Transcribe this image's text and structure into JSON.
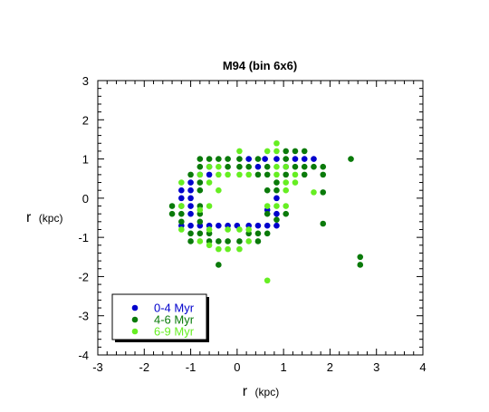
{
  "chart_data": {
    "type": "scatter",
    "title": "M94 (bin 6x6)",
    "xlabel": "r",
    "xlabel_unit": "(kpc)",
    "ylabel": "r",
    "ylabel_unit": "(kpc)",
    "xlim": [
      -3,
      4
    ],
    "ylim": [
      -4,
      3
    ],
    "xticks": [
      -3,
      -2,
      -1,
      0,
      1,
      2,
      3,
      4
    ],
    "yticks": [
      -4,
      -3,
      -2,
      -1,
      0,
      1,
      2,
      3
    ],
    "grid": false,
    "legend_position": "bottom-left",
    "series": [
      {
        "name": "0-4 Myr",
        "color": "#0000cc",
        "points": [
          [
            0.25,
            1.0
          ],
          [
            0.6,
            1.0
          ],
          [
            0.85,
            1.0
          ],
          [
            1.25,
            1.0
          ],
          [
            1.45,
            1.0
          ],
          [
            1.65,
            1.0
          ],
          [
            -0.6,
            0.8
          ],
          [
            0.45,
            0.8
          ],
          [
            1.05,
            0.8
          ],
          [
            -0.8,
            0.6
          ],
          [
            -0.6,
            0.6
          ],
          [
            -1.0,
            0.4
          ],
          [
            -1.2,
            0.2
          ],
          [
            -1.0,
            0.2
          ],
          [
            -1.2,
            0.0
          ],
          [
            -1.0,
            0.0
          ],
          [
            0.85,
            0.0
          ],
          [
            -1.0,
            -0.2
          ],
          [
            0.65,
            -0.3
          ],
          [
            -1.0,
            -0.4
          ],
          [
            0.85,
            -0.4
          ],
          [
            -1.2,
            -0.7
          ],
          [
            -1.0,
            -0.7
          ],
          [
            -0.8,
            -0.7
          ],
          [
            -0.6,
            -0.7
          ],
          [
            -0.4,
            -0.7
          ],
          [
            -0.2,
            -0.7
          ],
          [
            0.0,
            -0.7
          ],
          [
            0.25,
            -0.7
          ],
          [
            0.45,
            -0.7
          ],
          [
            0.65,
            -0.7
          ],
          [
            0.85,
            -0.7
          ]
        ]
      },
      {
        "name": "4-6 Myr",
        "color": "#0a7a0a",
        "points": [
          [
            1.05,
            1.2
          ],
          [
            1.25,
            1.2
          ],
          [
            1.45,
            1.2
          ],
          [
            -0.8,
            1.0
          ],
          [
            -0.6,
            1.0
          ],
          [
            -0.4,
            1.0
          ],
          [
            -0.2,
            1.0
          ],
          [
            0.05,
            1.0
          ],
          [
            0.45,
            1.0
          ],
          [
            1.05,
            1.0
          ],
          [
            2.45,
            1.0
          ],
          [
            -0.8,
            0.8
          ],
          [
            -0.2,
            0.8
          ],
          [
            0.05,
            0.8
          ],
          [
            0.25,
            0.8
          ],
          [
            0.65,
            0.8
          ],
          [
            1.25,
            0.8
          ],
          [
            1.45,
            0.8
          ],
          [
            1.65,
            0.8
          ],
          [
            1.85,
            0.8
          ],
          [
            -1.0,
            0.6
          ],
          [
            0.45,
            0.6
          ],
          [
            0.65,
            0.6
          ],
          [
            1.05,
            0.6
          ],
          [
            1.45,
            0.6
          ],
          [
            1.85,
            0.6
          ],
          [
            -0.8,
            0.4
          ],
          [
            0.85,
            0.4
          ],
          [
            -0.8,
            0.2
          ],
          [
            0.65,
            0.2
          ],
          [
            0.85,
            0.2
          ],
          [
            1.85,
            0.15
          ],
          [
            -1.4,
            -0.2
          ],
          [
            -1.2,
            -0.2
          ],
          [
            -0.8,
            -0.2
          ],
          [
            -1.4,
            -0.4
          ],
          [
            -1.2,
            -0.4
          ],
          [
            -0.8,
            -0.4
          ],
          [
            0.65,
            -0.4
          ],
          [
            1.05,
            -0.4
          ],
          [
            -1.2,
            -0.6
          ],
          [
            -0.8,
            -0.6
          ],
          [
            0.85,
            -0.55
          ],
          [
            -1.0,
            -0.9
          ],
          [
            -0.8,
            -0.9
          ],
          [
            -0.6,
            -0.9
          ],
          [
            0.25,
            -0.9
          ],
          [
            0.45,
            -0.9
          ],
          [
            0.65,
            -0.9
          ],
          [
            -1.0,
            -1.1
          ],
          [
            -0.6,
            -1.1
          ],
          [
            -0.4,
            -1.1
          ],
          [
            -0.2,
            -1.1
          ],
          [
            0.05,
            -1.1
          ],
          [
            0.45,
            -1.1
          ],
          [
            1.85,
            -0.65
          ],
          [
            2.65,
            -1.5
          ],
          [
            2.65,
            -1.7
          ],
          [
            -0.4,
            -1.7
          ]
        ]
      },
      {
        "name": "6-9 Myr",
        "color": "#66ee22",
        "points": [
          [
            0.85,
            1.4
          ],
          [
            0.05,
            1.2
          ],
          [
            0.65,
            1.2
          ],
          [
            0.85,
            1.2
          ],
          [
            -0.6,
            0.8
          ],
          [
            -0.4,
            0.8
          ],
          [
            0.85,
            0.8
          ],
          [
            1.05,
            0.8
          ],
          [
            -1.2,
            0.4
          ],
          [
            -0.6,
            0.4
          ],
          [
            1.05,
            0.4
          ],
          [
            1.25,
            0.4
          ],
          [
            -0.8,
            0.6
          ],
          [
            -0.4,
            0.6
          ],
          [
            -0.2,
            0.6
          ],
          [
            0.05,
            0.6
          ],
          [
            0.25,
            0.6
          ],
          [
            0.85,
            0.6
          ],
          [
            1.25,
            0.6
          ],
          [
            -0.4,
            0.2
          ],
          [
            1.05,
            0.2
          ],
          [
            1.65,
            0.15
          ],
          [
            -1.2,
            -0.2
          ],
          [
            -0.6,
            -0.2
          ],
          [
            0.65,
            -0.2
          ],
          [
            0.85,
            -0.2
          ],
          [
            1.05,
            -0.2
          ],
          [
            -0.8,
            -0.3
          ],
          [
            -1.2,
            -0.8
          ],
          [
            -0.6,
            -0.8
          ],
          [
            -0.2,
            -0.8
          ],
          [
            0.05,
            -0.8
          ],
          [
            0.25,
            -0.8
          ],
          [
            -0.8,
            -1.1
          ],
          [
            -0.6,
            -1.2
          ],
          [
            -0.4,
            -1.3
          ],
          [
            -0.2,
            -1.3
          ],
          [
            0.05,
            -1.3
          ],
          [
            0.25,
            -1.1
          ],
          [
            0.65,
            -2.1
          ]
        ]
      }
    ]
  }
}
